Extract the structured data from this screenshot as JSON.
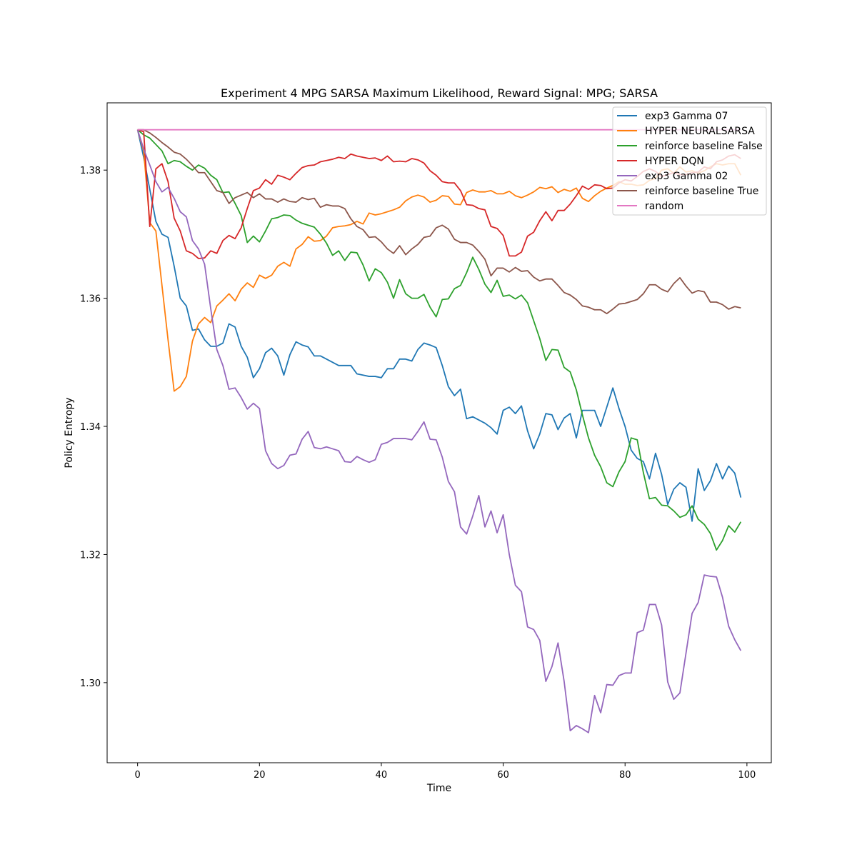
{
  "chart_data": {
    "type": "line",
    "title": "Experiment 4 MPG SARSA Maximum Likelihood,  Reward Signal: MPG; SARSA",
    "xlabel": "Time",
    "ylabel": "Policy Entropy",
    "xlim": [
      -5,
      104
    ],
    "ylim": [
      1.2875,
      1.3905
    ],
    "xticks": [
      0,
      20,
      40,
      60,
      80,
      100
    ],
    "yticks": [
      1.3,
      1.32,
      1.34,
      1.36,
      1.38
    ],
    "ytick_labels": [
      "1.30",
      "1.32",
      "1.34",
      "1.36",
      "1.38"
    ],
    "grid": false,
    "legend_position": "top-right",
    "x": [
      0,
      1,
      2,
      3,
      4,
      5,
      6,
      7,
      8,
      9,
      10,
      11,
      12,
      13,
      14,
      15,
      16,
      17,
      18,
      19,
      20,
      21,
      22,
      23,
      24,
      25,
      26,
      27,
      28,
      29,
      30,
      31,
      32,
      33,
      34,
      35,
      36,
      37,
      38,
      39,
      40,
      41,
      42,
      43,
      44,
      45,
      46,
      47,
      48,
      49,
      50,
      51,
      52,
      53,
      54,
      55,
      56,
      57,
      58,
      59,
      60,
      61,
      62,
      63,
      64,
      65,
      66,
      67,
      68,
      69,
      70,
      71,
      72,
      73,
      74,
      75,
      76,
      77,
      78,
      79,
      80,
      81,
      82,
      83,
      84,
      85,
      86,
      87,
      88,
      89,
      90,
      91,
      92,
      93,
      94,
      95,
      96,
      97,
      98,
      99
    ],
    "series": [
      {
        "name": "exp3 Gamma 07",
        "color": "#1f77b4",
        "values": [
          1.3863,
          1.382,
          1.377,
          1.372,
          1.37,
          1.3695,
          1.365,
          1.36,
          1.3588,
          1.355,
          1.3552,
          1.3535,
          1.3525,
          1.3525,
          1.353,
          1.356,
          1.3555,
          1.3525,
          1.3508,
          1.3476,
          1.349,
          1.3515,
          1.3522,
          1.351,
          1.348,
          1.3512,
          1.3532,
          1.3527,
          1.3524,
          1.351,
          1.351,
          1.3505,
          1.35,
          1.3495,
          1.3495,
          1.3495,
          1.3482,
          1.348,
          1.3478,
          1.3478,
          1.3476,
          1.349,
          1.349,
          1.3505,
          1.3505,
          1.3502,
          1.352,
          1.353,
          1.3527,
          1.3523,
          1.3495,
          1.3462,
          1.3448,
          1.3458,
          1.3412,
          1.3415,
          1.341,
          1.3405,
          1.3398,
          1.3388,
          1.3425,
          1.343,
          1.342,
          1.3432,
          1.3393,
          1.3365,
          1.3388,
          1.342,
          1.3418,
          1.3395,
          1.3413,
          1.342,
          1.3382,
          1.3425,
          1.3425,
          1.3425,
          1.34,
          1.343,
          1.346,
          1.3428,
          1.34,
          1.3363,
          1.335,
          1.3345,
          1.3318,
          1.3358,
          1.3325,
          1.3278,
          1.3302,
          1.3312,
          1.3305,
          1.3252,
          1.3334,
          1.33,
          1.3315,
          1.3342,
          1.3318,
          1.3338,
          1.3327,
          1.3289
        ]
      },
      {
        "name": "HYPER NEURALSARSA",
        "color": "#ff7f0e",
        "values": [
          1.3863,
          1.383,
          1.3718,
          1.3705,
          1.362,
          1.3535,
          1.3455,
          1.3462,
          1.3478,
          1.3533,
          1.356,
          1.357,
          1.3562,
          1.3588,
          1.3597,
          1.3607,
          1.3596,
          1.3614,
          1.3624,
          1.3617,
          1.3636,
          1.3631,
          1.3636,
          1.365,
          1.3656,
          1.365,
          1.3677,
          1.3684,
          1.3696,
          1.3689,
          1.369,
          1.3697,
          1.371,
          1.3712,
          1.3713,
          1.3715,
          1.372,
          1.3716,
          1.3733,
          1.373,
          1.3732,
          1.3735,
          1.3738,
          1.3742,
          1.3752,
          1.3758,
          1.3761,
          1.3758,
          1.375,
          1.3753,
          1.376,
          1.3759,
          1.3747,
          1.3746,
          1.3765,
          1.3769,
          1.3766,
          1.3766,
          1.3768,
          1.3763,
          1.3763,
          1.3767,
          1.376,
          1.3757,
          1.3761,
          1.3766,
          1.3773,
          1.3771,
          1.3774,
          1.3765,
          1.377,
          1.3767,
          1.3772,
          1.3756,
          1.3751,
          1.376,
          1.3767,
          1.3772,
          1.3776,
          1.3782,
          1.3778,
          1.3778,
          1.3776,
          1.3777,
          1.3784,
          1.3787,
          1.38,
          1.3802,
          1.3795,
          1.3805,
          1.3797,
          1.3799,
          1.3795,
          1.3799,
          1.3805,
          1.381,
          1.3808,
          1.381,
          1.381,
          1.3792
        ]
      },
      {
        "name": "reinforce baseline False",
        "color": "#2ca02c",
        "values": [
          1.3863,
          1.3855,
          1.385,
          1.384,
          1.383,
          1.381,
          1.3815,
          1.3813,
          1.3806,
          1.38,
          1.3808,
          1.3803,
          1.3792,
          1.3785,
          1.3765,
          1.3766,
          1.3748,
          1.3729,
          1.3687,
          1.3697,
          1.3688,
          1.3705,
          1.3724,
          1.3726,
          1.373,
          1.3729,
          1.3722,
          1.3717,
          1.3714,
          1.3711,
          1.37,
          1.3686,
          1.3667,
          1.3674,
          1.3659,
          1.3672,
          1.3671,
          1.3652,
          1.3627,
          1.3646,
          1.364,
          1.3625,
          1.36,
          1.3629,
          1.3607,
          1.36,
          1.36,
          1.3606,
          1.3586,
          1.3571,
          1.3598,
          1.3599,
          1.3615,
          1.362,
          1.364,
          1.3664,
          1.3645,
          1.3622,
          1.3609,
          1.3628,
          1.3603,
          1.3605,
          1.3599,
          1.3605,
          1.3593,
          1.3565,
          1.3537,
          1.3503,
          1.352,
          1.3519,
          1.3492,
          1.3485,
          1.3457,
          1.3418,
          1.3382,
          1.3355,
          1.3337,
          1.3312,
          1.3306,
          1.3329,
          1.3345,
          1.3382,
          1.3379,
          1.3328,
          1.3287,
          1.3289,
          1.3277,
          1.3276,
          1.3268,
          1.3258,
          1.3262,
          1.3276,
          1.3255,
          1.3247,
          1.3233,
          1.3207,
          1.3222,
          1.3245,
          1.3235,
          1.3251
        ]
      },
      {
        "name": "HYPER DQN",
        "color": "#d62728",
        "values": [
          1.3863,
          1.386,
          1.3712,
          1.3802,
          1.381,
          1.3782,
          1.3725,
          1.3705,
          1.3674,
          1.367,
          1.3662,
          1.3663,
          1.3674,
          1.367,
          1.369,
          1.3698,
          1.3693,
          1.371,
          1.374,
          1.3768,
          1.3772,
          1.3785,
          1.3778,
          1.3792,
          1.3789,
          1.3785,
          1.3795,
          1.3804,
          1.3807,
          1.3808,
          1.3813,
          1.3815,
          1.3817,
          1.382,
          1.3818,
          1.3825,
          1.3822,
          1.382,
          1.3818,
          1.3819,
          1.3815,
          1.3822,
          1.3813,
          1.3814,
          1.3813,
          1.3818,
          1.3816,
          1.3811,
          1.3799,
          1.3792,
          1.3782,
          1.378,
          1.378,
          1.3768,
          1.3746,
          1.3745,
          1.374,
          1.3738,
          1.3712,
          1.3709,
          1.3698,
          1.3666,
          1.3666,
          1.3672,
          1.3697,
          1.3703,
          1.3721,
          1.3735,
          1.3721,
          1.3737,
          1.3737,
          1.3747,
          1.376,
          1.3775,
          1.377,
          1.3777,
          1.3776,
          1.3771,
          1.3772,
          1.378,
          1.3785,
          1.3783,
          1.379,
          1.3798,
          1.3802,
          1.3798,
          1.379,
          1.3793,
          1.3796,
          1.3793,
          1.3793,
          1.3796,
          1.3797,
          1.3805,
          1.3802,
          1.3813,
          1.3816,
          1.3822,
          1.3824,
          1.3818
        ]
      },
      {
        "name": "exp3 Gamma 02",
        "color": "#9467bd",
        "values": [
          1.3863,
          1.3833,
          1.3808,
          1.3782,
          1.3766,
          1.3773,
          1.3756,
          1.3735,
          1.3727,
          1.369,
          1.3677,
          1.3653,
          1.3584,
          1.352,
          1.3495,
          1.3458,
          1.346,
          1.3445,
          1.3427,
          1.3436,
          1.3428,
          1.3362,
          1.3342,
          1.3334,
          1.3339,
          1.3355,
          1.3357,
          1.338,
          1.3392,
          1.3367,
          1.3365,
          1.3368,
          1.3365,
          1.3362,
          1.3345,
          1.3344,
          1.3353,
          1.3348,
          1.3344,
          1.3348,
          1.3372,
          1.3375,
          1.3381,
          1.3381,
          1.3381,
          1.3379,
          1.3392,
          1.3407,
          1.338,
          1.3379,
          1.3352,
          1.3314,
          1.3298,
          1.3243,
          1.3232,
          1.326,
          1.3292,
          1.3243,
          1.3268,
          1.3234,
          1.3262,
          1.32,
          1.3152,
          1.3142,
          1.3087,
          1.3083,
          1.3066,
          1.3002,
          1.3025,
          1.3062,
          1.3002,
          1.2925,
          1.2933,
          1.2928,
          1.2922,
          1.298,
          1.2953,
          1.2997,
          1.2996,
          1.3011,
          1.3015,
          1.3015,
          1.3078,
          1.3082,
          1.3122,
          1.3122,
          1.309,
          1.3001,
          1.2974,
          1.2984,
          1.3046,
          1.3108,
          1.3125,
          1.3168,
          1.3166,
          1.3165,
          1.3133,
          1.3088,
          1.3067,
          1.305
        ]
      },
      {
        "name": "reinforce baseline True",
        "color": "#8c564b",
        "values": [
          1.3863,
          1.3863,
          1.3858,
          1.3851,
          1.3843,
          1.3836,
          1.3828,
          1.3825,
          1.3817,
          1.3807,
          1.3796,
          1.3796,
          1.3782,
          1.3768,
          1.3765,
          1.3748,
          1.3757,
          1.3761,
          1.3765,
          1.3757,
          1.3763,
          1.3755,
          1.3755,
          1.375,
          1.3755,
          1.3751,
          1.375,
          1.3757,
          1.3754,
          1.3756,
          1.3742,
          1.3746,
          1.3744,
          1.3744,
          1.374,
          1.3724,
          1.3712,
          1.3707,
          1.3695,
          1.3696,
          1.3688,
          1.3677,
          1.367,
          1.3682,
          1.3668,
          1.3677,
          1.3684,
          1.3695,
          1.3697,
          1.371,
          1.3714,
          1.3708,
          1.3692,
          1.3687,
          1.3687,
          1.3683,
          1.3673,
          1.3661,
          1.3635,
          1.3647,
          1.3647,
          1.3641,
          1.3648,
          1.3642,
          1.3643,
          1.3633,
          1.3627,
          1.363,
          1.363,
          1.362,
          1.3609,
          1.3605,
          1.3598,
          1.3588,
          1.3586,
          1.3582,
          1.3582,
          1.3576,
          1.3583,
          1.3591,
          1.3592,
          1.3595,
          1.3598,
          1.3607,
          1.3621,
          1.3621,
          1.3614,
          1.361,
          1.3623,
          1.3632,
          1.3619,
          1.3608,
          1.3612,
          1.361,
          1.3594,
          1.3594,
          1.359,
          1.3583,
          1.3587,
          1.3585
        ]
      },
      {
        "name": "random",
        "color": "#e377c2",
        "values": [
          1.3863,
          1.3863,
          1.3863,
          1.3863,
          1.3863,
          1.3863,
          1.3863,
          1.3863,
          1.3863,
          1.3863,
          1.3863,
          1.3863,
          1.3863,
          1.3863,
          1.3863,
          1.3863,
          1.3863,
          1.3863,
          1.3863,
          1.3863,
          1.3863,
          1.3863,
          1.3863,
          1.3863,
          1.3863,
          1.3863,
          1.3863,
          1.3863,
          1.3863,
          1.3863,
          1.3863,
          1.3863,
          1.3863,
          1.3863,
          1.3863,
          1.3863,
          1.3863,
          1.3863,
          1.3863,
          1.3863,
          1.3863,
          1.3863,
          1.3863,
          1.3863,
          1.3863,
          1.3863,
          1.3863,
          1.3863,
          1.3863,
          1.3863,
          1.3863,
          1.3863,
          1.3863,
          1.3863,
          1.3863,
          1.3863,
          1.3863,
          1.3863,
          1.3863,
          1.3863,
          1.3863,
          1.3863,
          1.3863,
          1.3863,
          1.3863,
          1.3863,
          1.3863,
          1.3863,
          1.3863,
          1.3863,
          1.3863,
          1.3863,
          1.3863,
          1.3863,
          1.3863,
          1.3863,
          1.3863,
          1.3863,
          1.3863,
          1.3863,
          1.3863,
          1.3863,
          1.3863,
          1.3863,
          1.3863,
          1.3863,
          1.3863,
          1.3863,
          1.3863,
          1.3863,
          1.3863,
          1.3863,
          1.3863,
          1.3863,
          1.3863,
          1.3863,
          1.3863,
          1.3863,
          1.3863,
          1.3863
        ]
      }
    ]
  }
}
